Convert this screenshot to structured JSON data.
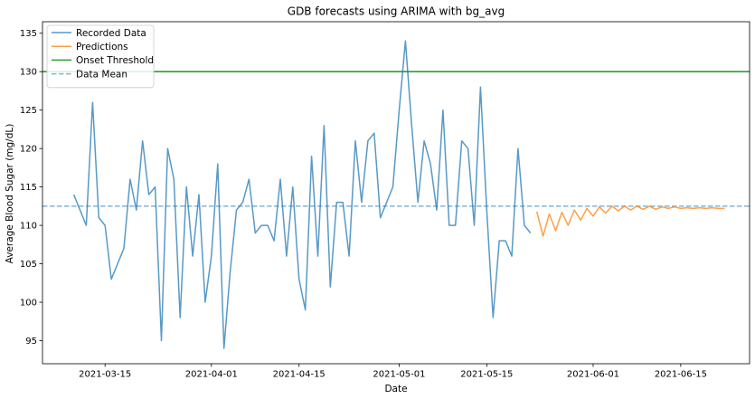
{
  "chart_data": {
    "type": "line",
    "title": "GDB forecasts using ARIMA with bg_avg",
    "xlabel": "Date",
    "ylabel": "Average Blood Sugar (mg/dL)",
    "xlim": [
      "2021-03-05",
      "2021-06-26"
    ],
    "ylim": [
      92,
      136.5
    ],
    "x_ticks": [
      {
        "date": "2021-03-15",
        "label": "2021-03-15"
      },
      {
        "date": "2021-04-01",
        "label": "2021-04-01"
      },
      {
        "date": "2021-04-15",
        "label": "2021-04-15"
      },
      {
        "date": "2021-05-01",
        "label": "2021-05-01"
      },
      {
        "date": "2021-05-15",
        "label": "2021-05-15"
      },
      {
        "date": "2021-06-01",
        "label": "2021-06-01"
      },
      {
        "date": "2021-06-15",
        "label": "2021-06-15"
      }
    ],
    "y_ticks": [
      95,
      100,
      105,
      110,
      115,
      120,
      125,
      130,
      135
    ],
    "legend_position": "top-left",
    "series": [
      {
        "name": "Recorded Data",
        "color": "#1f77b4",
        "style": "solid",
        "x": [
          "2021-03-10",
          "2021-03-11",
          "2021-03-12",
          "2021-03-13",
          "2021-03-14",
          "2021-03-15",
          "2021-03-16",
          "2021-03-17",
          "2021-03-18",
          "2021-03-19",
          "2021-03-20",
          "2021-03-21",
          "2021-03-22",
          "2021-03-23",
          "2021-03-24",
          "2021-03-25",
          "2021-03-26",
          "2021-03-27",
          "2021-03-28",
          "2021-03-29",
          "2021-03-30",
          "2021-03-31",
          "2021-04-01",
          "2021-04-02",
          "2021-04-03",
          "2021-04-04",
          "2021-04-05",
          "2021-04-06",
          "2021-04-07",
          "2021-04-08",
          "2021-04-09",
          "2021-04-10",
          "2021-04-11",
          "2021-04-12",
          "2021-04-13",
          "2021-04-14",
          "2021-04-15",
          "2021-04-16",
          "2021-04-17",
          "2021-04-18",
          "2021-04-19",
          "2021-04-20",
          "2021-04-21",
          "2021-04-22",
          "2021-04-23",
          "2021-04-24",
          "2021-04-25",
          "2021-04-26",
          "2021-04-27",
          "2021-04-28",
          "2021-04-29",
          "2021-04-30",
          "2021-05-01",
          "2021-05-02",
          "2021-05-03",
          "2021-05-04",
          "2021-05-05",
          "2021-05-06",
          "2021-05-07",
          "2021-05-08",
          "2021-05-09",
          "2021-05-10",
          "2021-05-11",
          "2021-05-12",
          "2021-05-13",
          "2021-05-14",
          "2021-05-15",
          "2021-05-16",
          "2021-05-17",
          "2021-05-18",
          "2021-05-19",
          "2021-05-20",
          "2021-05-21",
          "2021-05-22"
        ],
        "y": [
          114,
          112,
          110,
          126,
          111,
          110,
          103,
          105,
          107,
          116,
          112,
          121,
          114,
          115,
          95,
          120,
          116,
          98,
          115,
          106,
          114,
          100,
          106,
          118,
          94,
          104,
          112,
          113,
          116,
          109,
          110,
          110,
          108,
          116,
          106,
          115,
          103,
          99,
          119,
          106,
          123,
          102,
          113,
          113,
          106,
          121,
          113,
          121,
          122,
          111,
          113,
          115,
          125,
          134,
          123,
          113,
          121,
          118,
          112,
          125,
          110,
          110,
          121,
          120,
          110,
          128,
          112,
          98,
          108,
          108,
          106,
          120,
          110,
          109
        ]
      },
      {
        "name": "Predictions",
        "color": "#ff7f0e",
        "style": "solid",
        "x": [
          "2021-05-23",
          "2021-05-24",
          "2021-05-25",
          "2021-05-26",
          "2021-05-27",
          "2021-05-28",
          "2021-05-29",
          "2021-05-30",
          "2021-05-31",
          "2021-06-01",
          "2021-06-02",
          "2021-06-03",
          "2021-06-04",
          "2021-06-05",
          "2021-06-06",
          "2021-06-07",
          "2021-06-08",
          "2021-06-09",
          "2021-06-10",
          "2021-06-11",
          "2021-06-12",
          "2021-06-13",
          "2021-06-14",
          "2021-06-15",
          "2021-06-16",
          "2021-06-17",
          "2021-06-18",
          "2021-06-19",
          "2021-06-20",
          "2021-06-21",
          "2021-06-22"
        ],
        "y": [
          111.8,
          108.6,
          111.5,
          109.3,
          111.7,
          110.0,
          112.0,
          110.7,
          112.2,
          111.2,
          112.4,
          111.6,
          112.5,
          111.9,
          112.5,
          112.0,
          112.5,
          112.1,
          112.5,
          112.1,
          112.4,
          112.2,
          112.4,
          112.2,
          112.3,
          112.2,
          112.3,
          112.2,
          112.3,
          112.2,
          112.2
        ]
      }
    ],
    "reference_lines": [
      {
        "name": "Onset Threshold",
        "y": 130,
        "color": "#2ca02c",
        "style": "solid"
      },
      {
        "name": "Data Mean",
        "y": 112.5,
        "color": "#1f77b4",
        "style": "dashed"
      }
    ]
  }
}
